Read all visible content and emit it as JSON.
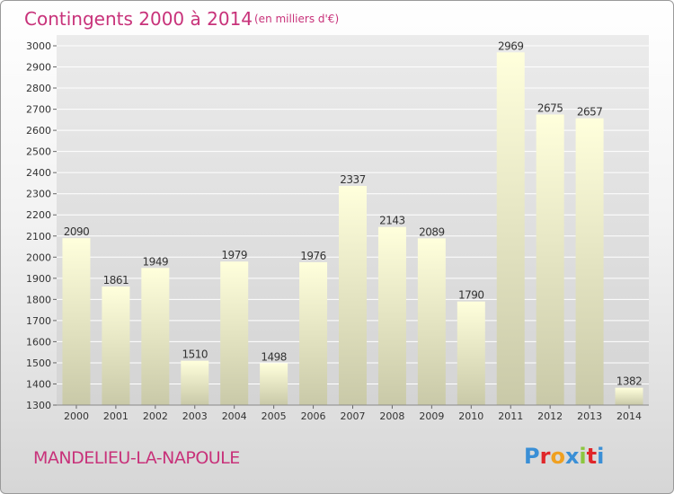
{
  "chart_data": {
    "type": "bar",
    "title": "Contingents 2000 à 2014",
    "subtitle": "(en milliers d'€)",
    "categories": [
      "2000",
      "2001",
      "2002",
      "2003",
      "2004",
      "2005",
      "2006",
      "2007",
      "2008",
      "2009",
      "2010",
      "2011",
      "2012",
      "2013",
      "2014"
    ],
    "values": [
      2090,
      1861,
      1949,
      1510,
      1979,
      1498,
      1976,
      2337,
      2143,
      2089,
      1790,
      2969,
      2675,
      2657,
      1382
    ],
    "ylim": [
      1300,
      3000
    ],
    "yticks": [
      1300,
      1400,
      1500,
      1600,
      1700,
      1800,
      1900,
      2000,
      2100,
      2200,
      2300,
      2400,
      2500,
      2600,
      2700,
      2800,
      2900,
      3000
    ],
    "grid": true,
    "xlabel": "",
    "ylabel": ""
  },
  "footer": {
    "place_name": "MANDELIEU-LA-NAPOULE",
    "logo_text": "Proxiti"
  },
  "colors": {
    "title": "#c8327a",
    "place_name": "#c8327a",
    "bar_top": "#ffffdc",
    "bar_bottom": "#c9c9a8",
    "grid": "#ffffff"
  }
}
